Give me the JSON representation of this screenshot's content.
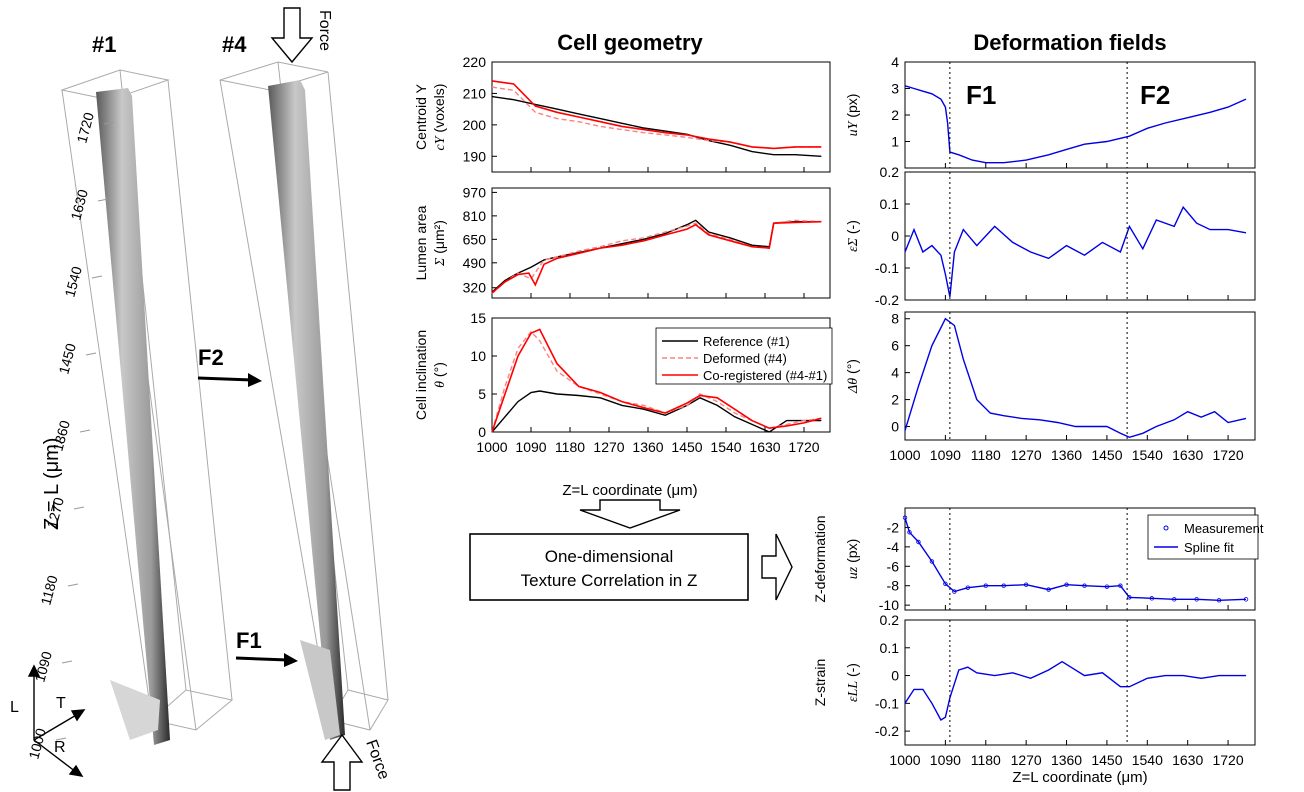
{
  "specimen": {
    "ref_label": "#1",
    "def_label": "#4",
    "force_label": "Force",
    "f1_label": "F1",
    "f2_label": "F2",
    "z_axis_label": "Z = L (μm)",
    "z_ticks": [
      "1000",
      "1090",
      "1180",
      "1270",
      "1360",
      "1450",
      "1540",
      "1630",
      "1720"
    ],
    "axes_labels": {
      "L": "L",
      "T": "T",
      "R": "R"
    }
  },
  "headers": {
    "cell_geometry": "Cell geometry",
    "deformation_fields": "Deformation fields"
  },
  "x_axis": {
    "label": "Z=L coordinate (μm)",
    "ticks": [
      "1000",
      "1090",
      "1180",
      "1270",
      "1360",
      "1450",
      "1540",
      "1630",
      "1720"
    ]
  },
  "process": {
    "box_line1": "One-dimensional",
    "box_line2": "Texture Correlation in Z"
  },
  "markers": {
    "f1": "F1",
    "f2": "F2",
    "f1_z": 1100,
    "f2_z": 1495
  },
  "legends": {
    "geometry": [
      "Reference (#1)",
      "Deformed (#4)",
      "Co-registered (#4-#1)"
    ],
    "zdef": [
      "Measurement",
      "Spline fit"
    ]
  },
  "colors": {
    "reference": "#000000",
    "deformed": "#ff8080",
    "coregistered": "#ff0000",
    "field": "#0000e6",
    "fill": "#b4b4b4"
  },
  "chart_data": [
    {
      "type": "line",
      "panel": "centroid",
      "ylabel_line1": "Centroid Y",
      "ylabel_var": "c_Y",
      "ylabel_unit": "(voxels)",
      "ylim": [
        185,
        220
      ],
      "yticks": [
        190,
        200,
        210,
        220
      ],
      "xlim": [
        1000,
        1780
      ],
      "series": [
        {
          "name": "Reference (#1)",
          "x": [
            1000,
            1050,
            1100,
            1150,
            1200,
            1250,
            1300,
            1350,
            1400,
            1450,
            1500,
            1550,
            1600,
            1650,
            1700,
            1760
          ],
          "values": [
            209,
            208,
            206.5,
            205,
            203.5,
            202,
            200.5,
            199,
            198,
            197,
            195,
            193.5,
            191.5,
            190.5,
            190.5,
            190
          ]
        },
        {
          "name": "Deformed (#4)",
          "x": [
            1000,
            1050,
            1100,
            1150,
            1200,
            1250,
            1300,
            1350,
            1400,
            1450,
            1500,
            1550,
            1600,
            1650,
            1700,
            1760
          ],
          "values": [
            212,
            211,
            204,
            202,
            201,
            199.5,
            198.5,
            197.5,
            196.8,
            196,
            195,
            194.5,
            193,
            192.5,
            193,
            193
          ]
        },
        {
          "name": "Co-registered (#4-#1)",
          "x": [
            1000,
            1050,
            1100,
            1150,
            1200,
            1250,
            1300,
            1350,
            1400,
            1450,
            1500,
            1550,
            1600,
            1650,
            1700,
            1760
          ],
          "values": [
            214,
            213,
            206,
            204,
            202.5,
            201,
            199.5,
            198.5,
            197.5,
            196.8,
            195.5,
            194.5,
            193,
            192.5,
            193,
            193
          ]
        }
      ]
    },
    {
      "type": "line",
      "panel": "lumen",
      "ylabel_line1": "Lumen area",
      "ylabel_var": "Σ",
      "ylabel_unit": "(μm²)",
      "ylim": [
        250,
        1000
      ],
      "yticks": [
        320,
        490,
        650,
        810,
        970
      ],
      "xlim": [
        1000,
        1780
      ],
      "series": [
        {
          "name": "Reference (#1)",
          "x": [
            1000,
            1030,
            1060,
            1090,
            1120,
            1150,
            1200,
            1250,
            1300,
            1350,
            1400,
            1450,
            1470,
            1500,
            1550,
            1600,
            1640,
            1650,
            1700,
            1760
          ],
          "values": [
            290,
            370,
            420,
            460,
            510,
            530,
            560,
            590,
            620,
            650,
            690,
            750,
            780,
            700,
            660,
            610,
            600,
            760,
            770,
            770
          ]
        },
        {
          "name": "Deformed (#4)",
          "x": [
            1000,
            1030,
            1060,
            1090,
            1120,
            1150,
            1200,
            1250,
            1300,
            1350,
            1400,
            1450,
            1470,
            1500,
            1550,
            1600,
            1640,
            1650,
            1700,
            1760
          ],
          "values": [
            280,
            360,
            420,
            380,
            510,
            530,
            570,
            600,
            640,
            660,
            700,
            740,
            760,
            690,
            650,
            600,
            590,
            760,
            780,
            770
          ]
        },
        {
          "name": "Co-registered (#4-#1)",
          "x": [
            1000,
            1030,
            1060,
            1085,
            1100,
            1120,
            1150,
            1200,
            1250,
            1300,
            1350,
            1400,
            1450,
            1470,
            1500,
            1550,
            1600,
            1640,
            1650,
            1700,
            1760
          ],
          "values": [
            285,
            360,
            410,
            420,
            340,
            480,
            520,
            555,
            590,
            610,
            640,
            680,
            720,
            750,
            680,
            640,
            600,
            590,
            760,
            765,
            770
          ]
        }
      ]
    },
    {
      "type": "line",
      "panel": "inclination",
      "ylabel_line1": "Cell inclination",
      "ylabel_var": "θ",
      "ylabel_unit": "(°)",
      "ylim": [
        0,
        15
      ],
      "yticks": [
        0,
        5,
        10,
        15
      ],
      "xlim": [
        1000,
        1780
      ],
      "series": [
        {
          "name": "Reference (#1)",
          "x": [
            1000,
            1030,
            1060,
            1090,
            1110,
            1150,
            1200,
            1250,
            1300,
            1350,
            1400,
            1450,
            1480,
            1520,
            1560,
            1600,
            1640,
            1680,
            1720,
            1760
          ],
          "values": [
            0,
            2,
            4,
            5.2,
            5.4,
            5,
            4.8,
            4.5,
            3.5,
            3,
            2.2,
            3.5,
            4.5,
            3.5,
            2,
            1,
            0,
            1.5,
            1.5,
            1.5
          ]
        },
        {
          "name": "Deformed (#4)",
          "x": [
            1000,
            1030,
            1060,
            1090,
            1110,
            1150,
            1200,
            1250,
            1300,
            1350,
            1400,
            1450,
            1480,
            1520,
            1560,
            1600,
            1640,
            1680,
            1720,
            1760
          ],
          "values": [
            0,
            6,
            11,
            13.2,
            12,
            8,
            6,
            5,
            4,
            3.5,
            2.5,
            3.5,
            5,
            4,
            2.5,
            1.5,
            0.5,
            1,
            1.5,
            1.8
          ]
        },
        {
          "name": "Co-registered (#4-#1)",
          "x": [
            1000,
            1030,
            1060,
            1090,
            1110,
            1150,
            1200,
            1250,
            1300,
            1350,
            1400,
            1450,
            1480,
            1520,
            1560,
            1600,
            1640,
            1680,
            1720,
            1760
          ],
          "values": [
            0,
            5,
            10,
            13,
            13.5,
            9,
            6,
            5.2,
            4,
            3.2,
            2.5,
            3.8,
            4.8,
            4.5,
            3,
            1.5,
            0.5,
            0.8,
            1.2,
            1.8
          ]
        }
      ]
    },
    {
      "type": "line",
      "panel": "uy",
      "ylabel_var": "u_Y",
      "ylabel_unit": "(px)",
      "ylim": [
        0,
        4
      ],
      "yticks": [
        1,
        2,
        3,
        4
      ],
      "xlim": [
        1000,
        1780
      ],
      "series": [
        {
          "name": "u_Y",
          "x": [
            1000,
            1020,
            1040,
            1060,
            1080,
            1090,
            1095,
            1100,
            1120,
            1150,
            1180,
            1220,
            1270,
            1320,
            1360,
            1400,
            1450,
            1500,
            1540,
            1580,
            1630,
            1680,
            1720,
            1760
          ],
          "values": [
            3.1,
            3,
            2.9,
            2.8,
            2.6,
            2.3,
            1.7,
            0.6,
            0.5,
            0.3,
            0.2,
            0.2,
            0.3,
            0.5,
            0.7,
            0.9,
            1,
            1.2,
            1.5,
            1.7,
            1.9,
            2.1,
            2.3,
            2.6
          ]
        }
      ]
    },
    {
      "type": "line",
      "panel": "dsigma",
      "ylabel_var": "εΣ",
      "ylabel_unit": "(-)",
      "ylim": [
        -0.2,
        0.2
      ],
      "yticks": [
        -0.2,
        -0.1,
        0,
        0.1,
        0.2
      ],
      "xlim": [
        1000,
        1780
      ],
      "series": [
        {
          "name": "εΣ",
          "x": [
            1000,
            1020,
            1040,
            1060,
            1080,
            1090,
            1100,
            1110,
            1130,
            1160,
            1200,
            1240,
            1280,
            1320,
            1360,
            1400,
            1440,
            1480,
            1500,
            1530,
            1560,
            1600,
            1620,
            1650,
            1680,
            1720,
            1760
          ],
          "values": [
            -0.05,
            0.02,
            -0.05,
            -0.03,
            -0.06,
            -0.12,
            -0.19,
            -0.05,
            0.02,
            -0.03,
            0.03,
            -0.02,
            -0.05,
            -0.07,
            -0.03,
            -0.06,
            -0.02,
            -0.05,
            0.03,
            -0.04,
            0.05,
            0.03,
            0.09,
            0.04,
            0.02,
            0.02,
            0.01
          ]
        }
      ]
    },
    {
      "type": "line",
      "panel": "dtheta",
      "ylabel_var": "Δθ",
      "ylabel_unit": "(°)",
      "ylim": [
        -1,
        8.5
      ],
      "yticks": [
        0,
        2,
        4,
        6,
        8
      ],
      "xlim": [
        1000,
        1780
      ],
      "series": [
        {
          "name": "Δθ",
          "x": [
            1000,
            1030,
            1060,
            1090,
            1110,
            1130,
            1160,
            1190,
            1220,
            1260,
            1300,
            1340,
            1380,
            1420,
            1450,
            1480,
            1500,
            1530,
            1560,
            1600,
            1630,
            1660,
            1690,
            1720,
            1760
          ],
          "values": [
            -0.3,
            3,
            6,
            8,
            7.5,
            5,
            2,
            1,
            0.8,
            0.6,
            0.5,
            0.3,
            0,
            0,
            0,
            -0.5,
            -0.8,
            -0.5,
            0,
            0.5,
            1.1,
            0.7,
            1.1,
            0.3,
            0.6
          ]
        }
      ]
    },
    {
      "type": "line",
      "panel": "uz",
      "ylabel_var": "u_z",
      "ylabel_unit": "(px)",
      "side_label": "Z-deformation",
      "ylim": [
        -10.5,
        0
      ],
      "yticks": [
        -10,
        -8,
        -6,
        -4,
        -2
      ],
      "xlim": [
        1000,
        1780
      ],
      "series": [
        {
          "name": "Spline fit",
          "x": [
            1000,
            1010,
            1030,
            1060,
            1090,
            1110,
            1140,
            1180,
            1220,
            1270,
            1320,
            1360,
            1400,
            1450,
            1480,
            1500,
            1550,
            1600,
            1650,
            1700,
            1760
          ],
          "values": [
            -1,
            -2.5,
            -3.5,
            -5.5,
            -7.8,
            -8.6,
            -8.2,
            -8,
            -8,
            -7.9,
            -8.4,
            -7.9,
            -8,
            -8.1,
            -8,
            -9.2,
            -9.3,
            -9.4,
            -9.4,
            -9.5,
            -9.4
          ]
        }
      ]
    },
    {
      "type": "line",
      "panel": "strain",
      "ylabel_var": "ε_LL",
      "ylabel_unit": "(-)",
      "side_label": "Z-strain",
      "ylim": [
        -0.25,
        0.2
      ],
      "yticks": [
        -0.2,
        -0.1,
        0,
        0.1,
        0.2
      ],
      "xlim": [
        1000,
        1780
      ],
      "series": [
        {
          "name": "ε_LL",
          "x": [
            1000,
            1020,
            1040,
            1060,
            1080,
            1090,
            1100,
            1120,
            1140,
            1160,
            1200,
            1240,
            1280,
            1320,
            1350,
            1370,
            1400,
            1440,
            1480,
            1500,
            1540,
            1580,
            1620,
            1660,
            1700,
            1760
          ],
          "values": [
            -0.1,
            -0.05,
            -0.05,
            -0.1,
            -0.16,
            -0.15,
            -0.08,
            0.02,
            0.03,
            0.01,
            0,
            0.01,
            -0.01,
            0.02,
            0.05,
            0.03,
            0,
            0.01,
            -0.04,
            -0.04,
            -0.01,
            0,
            0,
            -0.01,
            0,
            0
          ]
        }
      ]
    }
  ]
}
